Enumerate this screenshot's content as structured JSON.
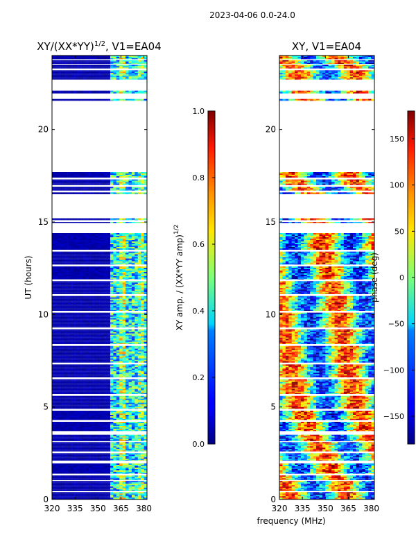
{
  "suptitle": "2023-04-06 0.0-24.0",
  "xlabel": "frequency (MHz)",
  "chart_data": [
    {
      "type": "heatmap",
      "title_main": "XY/(XX*YY)",
      "title_sup": "1/2",
      "title_tail": ", V1=EA04",
      "x_range": [
        320,
        382
      ],
      "xticks": [
        320,
        335,
        350,
        365,
        380
      ],
      "y_range": [
        0,
        24
      ],
      "yticks": [
        0,
        5,
        10,
        15,
        20
      ],
      "ylabel": "UT (hours)",
      "colorbar": {
        "range": [
          0.0,
          1.0
        ],
        "ticks": [
          "0.0",
          "0.2",
          "0.4",
          "0.6",
          "0.8",
          "1.0"
        ],
        "tick_values": [
          0.0,
          0.2,
          0.4,
          0.6,
          0.8,
          1.0
        ],
        "label_main": "XY amp. / (XX*YY amp)",
        "label_sup": "1/2"
      },
      "colormap": "jet"
    },
    {
      "type": "heatmap",
      "title_main": "XY, V1=EA04",
      "x_range": [
        320,
        382
      ],
      "xticks": [
        320,
        335,
        350,
        365,
        380
      ],
      "y_range": [
        0,
        24
      ],
      "yticks": [
        0,
        5,
        10,
        15,
        20
      ],
      "colorbar": {
        "range": [
          -180,
          180
        ],
        "ticks": [
          "−150",
          "−100",
          "−50",
          "0",
          "50",
          "100",
          "150"
        ],
        "tick_values": [
          -150,
          -100,
          -50,
          0,
          50,
          100,
          150
        ],
        "label_main": "phase (deg)"
      },
      "colormap": "jet"
    }
  ],
  "data_coverage_hours": [
    [
      0.0,
      0.4
    ],
    [
      0.45,
      1.0
    ],
    [
      1.05,
      1.3
    ],
    [
      1.4,
      1.95
    ],
    [
      2.1,
      2.5
    ],
    [
      2.6,
      3.1
    ],
    [
      3.15,
      3.5
    ],
    [
      3.7,
      4.2
    ],
    [
      4.3,
      4.8
    ],
    [
      4.9,
      5.6
    ],
    [
      5.7,
      6.5
    ],
    [
      6.6,
      7.3
    ],
    [
      7.4,
      8.3
    ],
    [
      8.4,
      9.2
    ],
    [
      9.3,
      10.1
    ],
    [
      10.2,
      11.0
    ],
    [
      11.1,
      11.8
    ],
    [
      11.9,
      12.6
    ],
    [
      12.7,
      13.4
    ],
    [
      13.5,
      14.4
    ],
    [
      14.95,
      15.0
    ],
    [
      15.1,
      15.2
    ],
    [
      16.5,
      16.6
    ],
    [
      16.7,
      16.9
    ],
    [
      17.0,
      17.3
    ],
    [
      17.4,
      17.7
    ],
    [
      21.55,
      21.65
    ],
    [
      21.95,
      22.1
    ],
    [
      22.7,
      23.2
    ],
    [
      23.3,
      23.5
    ],
    [
      23.55,
      23.75
    ],
    [
      23.8,
      24.0
    ]
  ]
}
